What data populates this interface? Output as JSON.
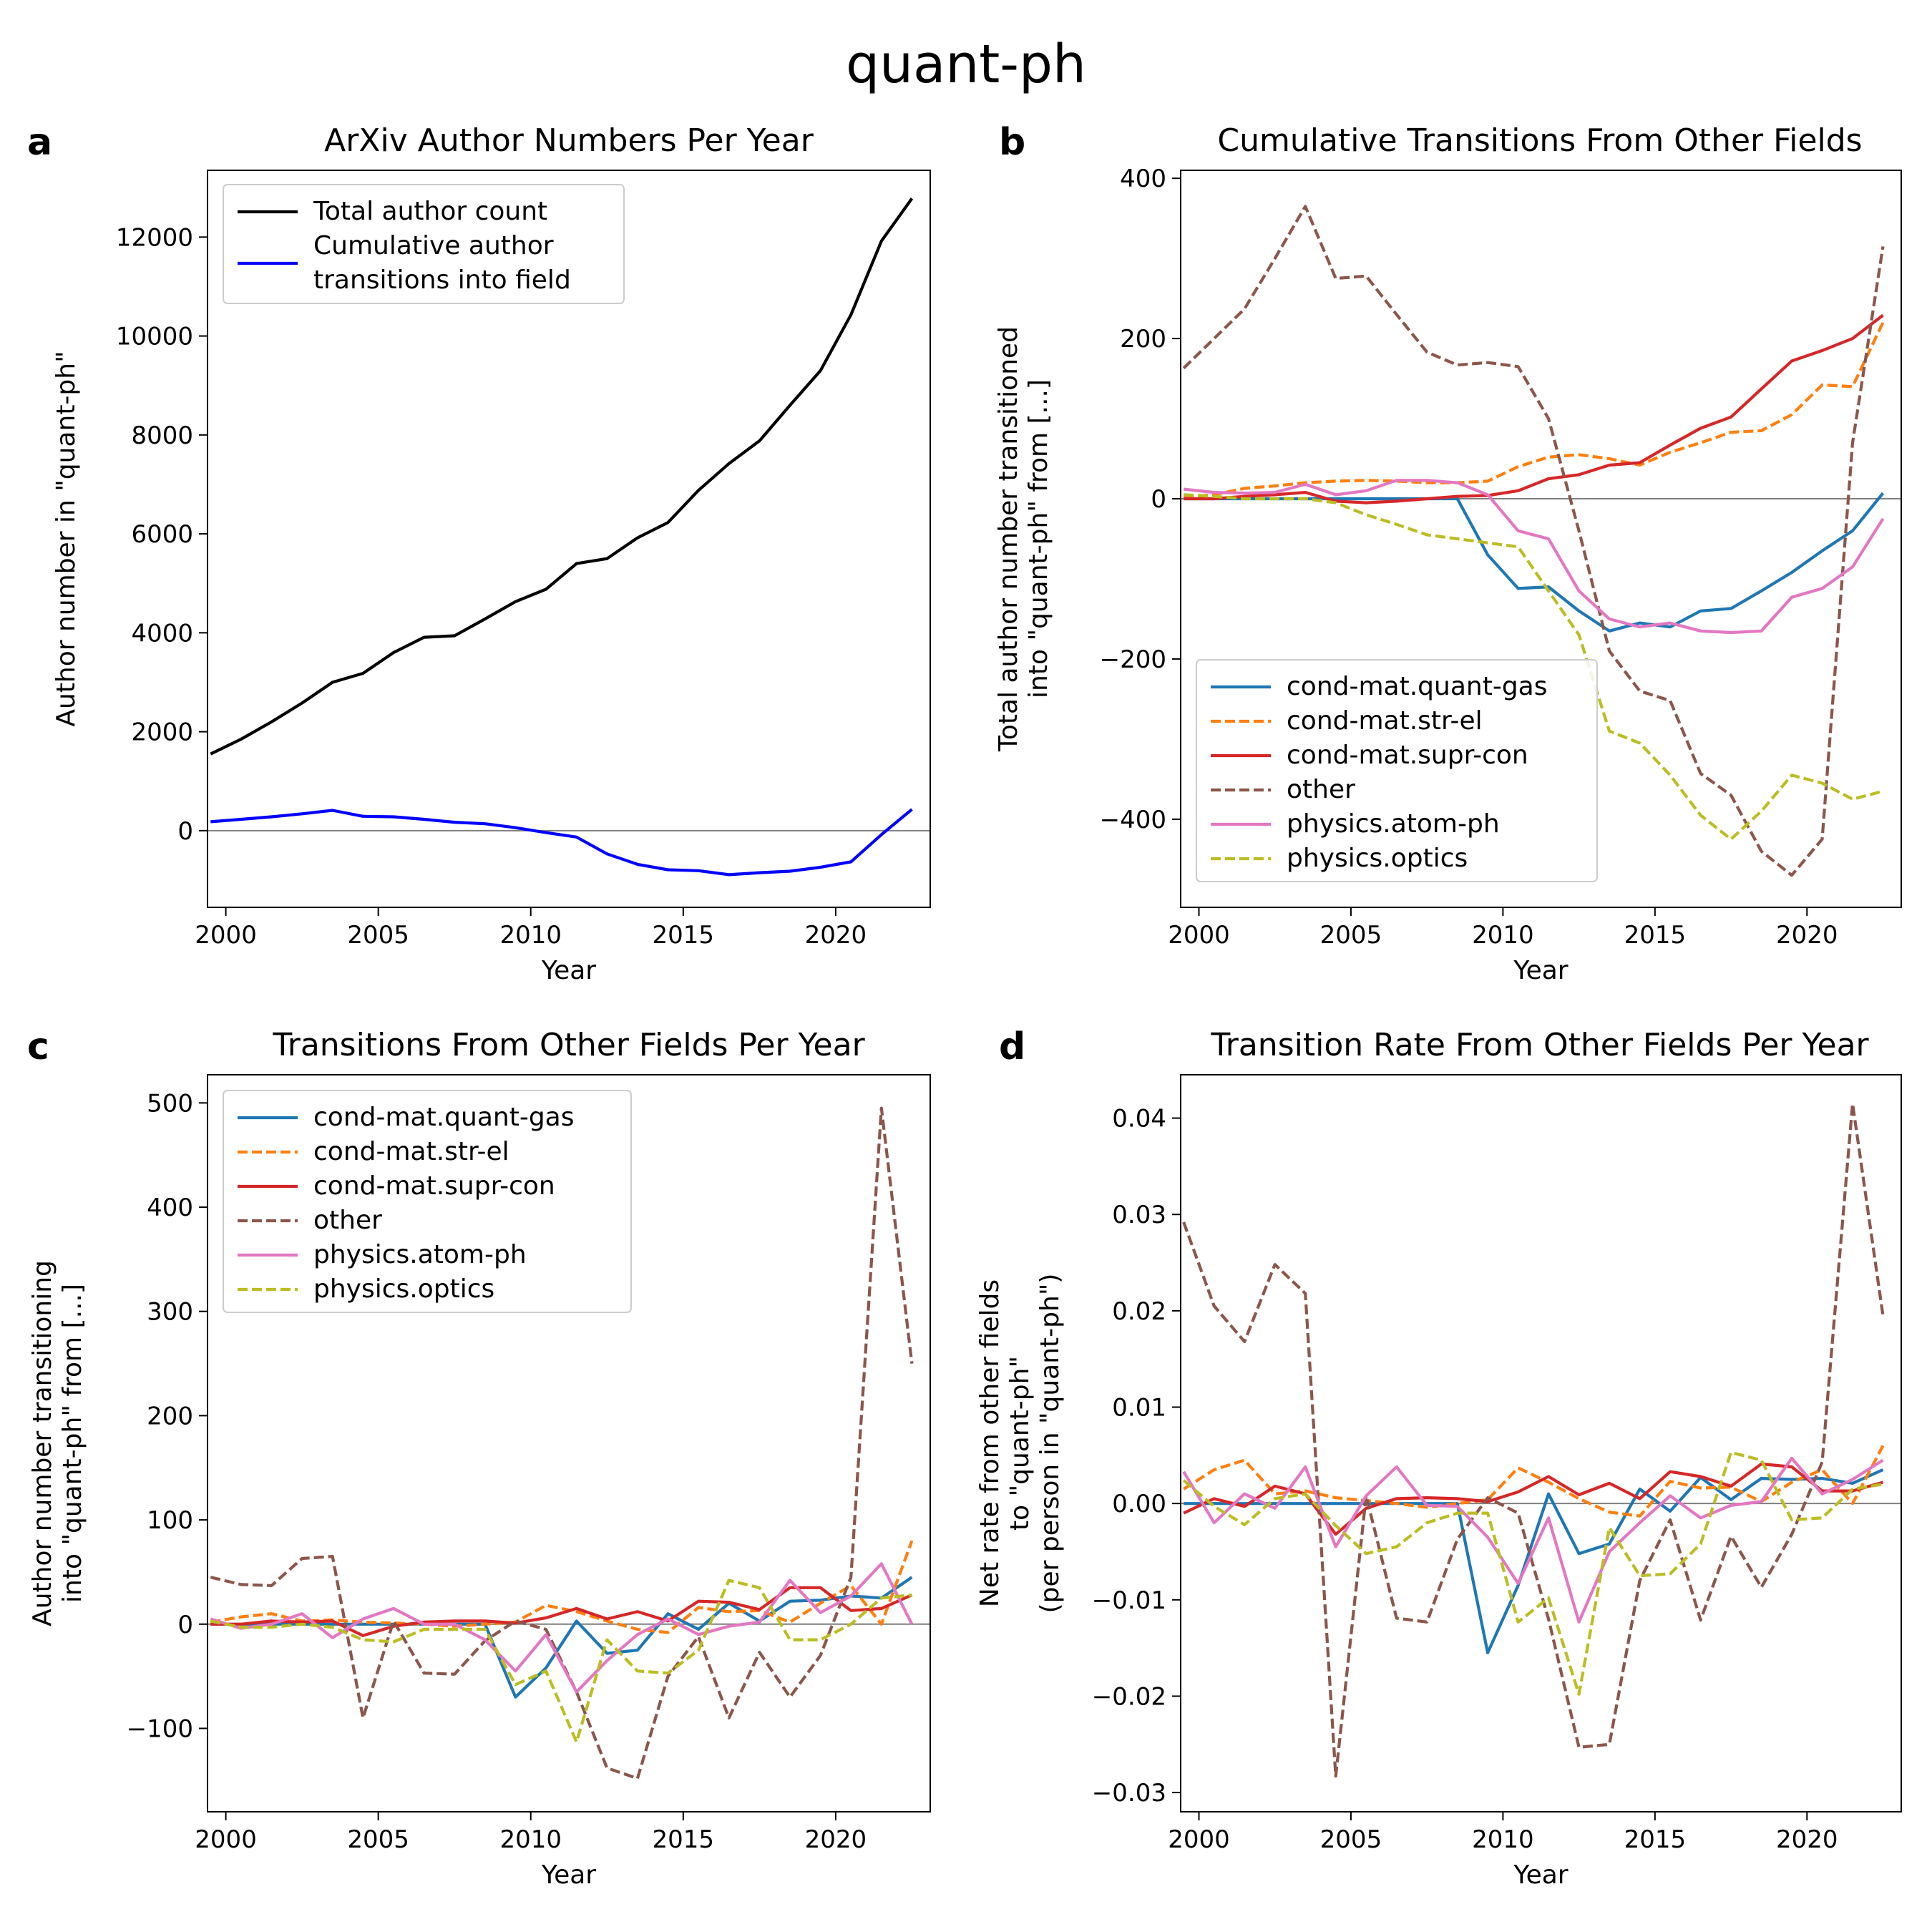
{
  "suptitle": "quant-ph",
  "colors": {
    "total": "#000000",
    "cumulative": "#0000ff",
    "cond-mat.quant-gas": "#1f77b4",
    "cond-mat.str-el": "#ff7f0e",
    "cond-mat.supr-con": "#d62728",
    "other": "#8c564b",
    "physics.atom-ph": "#e377c2",
    "physics.optics": "#bcbd22",
    "zero_line": "#808080"
  },
  "chart_data": [
    {
      "id": "a",
      "type": "line",
      "panel_letter": "a",
      "title": "ArXiv Author Numbers Per Year",
      "xlabel": "Year",
      "ylabel": "Author number in \"quant-ph\"",
      "xlim": [
        1999.4,
        2023.1
      ],
      "ylim": [
        -1550,
        13350
      ],
      "xticks": [
        2000,
        2005,
        2010,
        2015,
        2020
      ],
      "yticks": [
        0,
        2000,
        4000,
        6000,
        8000,
        10000,
        12000
      ],
      "legend_position": "upper left",
      "x": [
        1999.5,
        2000.5,
        2001.5,
        2002.5,
        2003.5,
        2004.5,
        2005.5,
        2006.5,
        2007.5,
        2008.5,
        2009.5,
        2010.5,
        2011.5,
        2012.5,
        2013.5,
        2014.5,
        2015.5,
        2016.5,
        2017.5,
        2018.5,
        2019.5,
        2020.5,
        2021.5,
        2022.5
      ],
      "series": [
        {
          "name": "Total author count",
          "color_key": "total",
          "dash": "solid",
          "values": [
            1550,
            1850,
            2200,
            2580,
            3000,
            3180,
            3600,
            3910,
            3940,
            4280,
            4630,
            4880,
            5400,
            5500,
            5920,
            6230,
            6880,
            7420,
            7880,
            8600,
            9300,
            10430,
            11920,
            12780
          ]
        },
        {
          "name": "Cumulative author\ntransitions into field",
          "color_key": "cumulative",
          "dash": "solid",
          "values": [
            180,
            230,
            280,
            340,
            410,
            290,
            280,
            230,
            170,
            140,
            60,
            -40,
            -130,
            -470,
            -680,
            -790,
            -810,
            -890,
            -850,
            -820,
            -740,
            -630,
            -80,
            430
          ]
        }
      ]
    },
    {
      "id": "b",
      "type": "line",
      "panel_letter": "b",
      "title": "Cumulative Transitions From Other Fields",
      "xlabel": "Year",
      "ylabel": "Total author number transitioned\ninto \"quant-ph\" from [...]",
      "xlim": [
        1999.4,
        2023.1
      ],
      "ylim": [
        -510,
        410
      ],
      "xticks": [
        2000,
        2005,
        2010,
        2015,
        2020
      ],
      "yticks": [
        -400,
        -200,
        0,
        200,
        400
      ],
      "legend_position": "lower left",
      "x": [
        1999.5,
        2000.5,
        2001.5,
        2002.5,
        2003.5,
        2004.5,
        2005.5,
        2006.5,
        2007.5,
        2008.5,
        2009.5,
        2010.5,
        2011.5,
        2012.5,
        2013.5,
        2014.5,
        2015.5,
        2016.5,
        2017.5,
        2018.5,
        2019.5,
        2020.5,
        2021.5,
        2022.5
      ],
      "series": [
        {
          "name": "cond-mat.quant-gas",
          "color_key": "cond-mat.quant-gas",
          "dash": "solid",
          "values": [
            0,
            0,
            0,
            0,
            0,
            0,
            0,
            0,
            0,
            0,
            -70,
            -112,
            -110,
            -140,
            -165,
            -155,
            -160,
            -140,
            -137,
            -115,
            -92,
            -65,
            -40,
            7
          ]
        },
        {
          "name": "cond-mat.str-el",
          "color_key": "cond-mat.str-el",
          "dash": "dashed",
          "values": [
            2,
            5,
            13,
            16,
            20,
            22,
            23,
            22,
            20,
            20,
            22,
            40,
            52,
            55,
            50,
            42,
            58,
            70,
            83,
            85,
            105,
            142,
            140,
            220
          ]
        },
        {
          "name": "cond-mat.supr-con",
          "color_key": "cond-mat.supr-con",
          "dash": "solid",
          "values": [
            0,
            0,
            3,
            5,
            8,
            -3,
            -5,
            -3,
            0,
            3,
            4,
            10,
            25,
            30,
            42,
            45,
            67,
            88,
            102,
            137,
            172,
            185,
            200,
            229
          ]
        },
        {
          "name": "other",
          "color_key": "other",
          "dash": "dashed",
          "values": [
            163,
            200,
            237,
            300,
            365,
            275,
            278,
            230,
            183,
            167,
            170,
            165,
            100,
            -40,
            -190,
            -240,
            -252,
            -343,
            -370,
            -440,
            -470,
            -425,
            70,
            315
          ]
        },
        {
          "name": "physics.atom-ph",
          "color_key": "physics.atom-ph",
          "dash": "solid",
          "values": [
            12,
            8,
            7,
            8,
            18,
            5,
            10,
            23,
            23,
            20,
            5,
            -40,
            -50,
            -115,
            -150,
            -160,
            -155,
            -165,
            -167,
            -165,
            -123,
            -112,
            -85,
            -25
          ]
        },
        {
          "name": "physics.optics",
          "color_key": "physics.optics",
          "dash": "dashed",
          "values": [
            5,
            3,
            0,
            0,
            0,
            -5,
            -20,
            -32,
            -45,
            -50,
            -55,
            -60,
            -115,
            -170,
            -290,
            -305,
            -345,
            -395,
            -425,
            -390,
            -345,
            -355,
            -375,
            -365
          ]
        }
      ]
    },
    {
      "id": "c",
      "type": "line",
      "panel_letter": "c",
      "title": "Transitions From Other Fields Per Year",
      "xlabel": "Year",
      "ylabel": "Author number transitioning\ninto \"quant-ph\" from [...]",
      "xlim": [
        1999.4,
        2023.1
      ],
      "ylim": [
        -180,
        527
      ],
      "xticks": [
        2000,
        2005,
        2010,
        2015,
        2020
      ],
      "yticks": [
        -100,
        0,
        100,
        200,
        300,
        400,
        500
      ],
      "legend_position": "upper left",
      "x": [
        1999.5,
        2000.5,
        2001.5,
        2002.5,
        2003.5,
        2004.5,
        2005.5,
        2006.5,
        2007.5,
        2008.5,
        2009.5,
        2010.5,
        2011.5,
        2012.5,
        2013.5,
        2014.5,
        2015.5,
        2016.5,
        2017.5,
        2018.5,
        2019.5,
        2020.5,
        2021.5,
        2022.5
      ],
      "series": [
        {
          "name": "cond-mat.quant-gas",
          "color_key": "cond-mat.quant-gas",
          "dash": "solid",
          "values": [
            0,
            0,
            0,
            0,
            0,
            0,
            0,
            0,
            0,
            0,
            -70,
            -42,
            3,
            -28,
            -25,
            10,
            -5,
            20,
            3,
            22,
            23,
            27,
            25,
            45
          ]
        },
        {
          "name": "cond-mat.str-el",
          "color_key": "cond-mat.str-el",
          "dash": "dashed",
          "values": [
            2,
            7,
            10,
            3,
            4,
            2,
            1,
            0,
            -2,
            0,
            2,
            18,
            12,
            3,
            -5,
            -8,
            16,
            12,
            13,
            2,
            20,
            37,
            0,
            80
          ]
        },
        {
          "name": "cond-mat.supr-con",
          "color_key": "cond-mat.supr-con",
          "dash": "solid",
          "values": [
            0,
            0,
            3,
            2,
            3,
            -11,
            -2,
            2,
            3,
            3,
            1,
            6,
            15,
            5,
            12,
            3,
            22,
            21,
            14,
            35,
            35,
            13,
            15,
            28
          ]
        },
        {
          "name": "other",
          "color_key": "other",
          "dash": "dashed",
          "values": [
            45,
            38,
            37,
            63,
            65,
            -90,
            3,
            -47,
            -48,
            -16,
            3,
            -5,
            -65,
            -138,
            -148,
            -50,
            -12,
            -90,
            -27,
            -70,
            -30,
            45,
            495,
            250
          ]
        },
        {
          "name": "physics.atom-ph",
          "color_key": "physics.atom-ph",
          "dash": "solid",
          "values": [
            5,
            -4,
            0,
            10,
            -13,
            5,
            15,
            0,
            0,
            -15,
            -45,
            -10,
            -65,
            -35,
            -10,
            5,
            -10,
            -2,
            2,
            42,
            11,
            27,
            58,
            0
          ]
        },
        {
          "name": "physics.optics",
          "color_key": "physics.optics",
          "dash": "dashed",
          "values": [
            3,
            -3,
            -3,
            0,
            -3,
            -15,
            -17,
            -5,
            -5,
            -5,
            -58,
            -45,
            -113,
            -15,
            -45,
            -47,
            -25,
            42,
            35,
            -15,
            -15,
            0,
            25,
            28
          ]
        }
      ]
    },
    {
      "id": "d",
      "type": "line",
      "panel_letter": "d",
      "title": "Transition Rate From Other Fields Per Year",
      "xlabel": "Year",
      "ylabel": "Net rate from other fields\nto \"quant-ph\"\n(per person in \"quant-ph\")",
      "xlim": [
        1999.4,
        2023.1
      ],
      "ylim": [
        -0.032,
        0.0445
      ],
      "xticks": [
        2000,
        2005,
        2010,
        2015,
        2020
      ],
      "yticks": [
        -0.03,
        -0.02,
        -0.01,
        0.0,
        0.01,
        0.02,
        0.03,
        0.04
      ],
      "ytick_labels": [
        "−0.03",
        "−0.02",
        "−0.01",
        "0.00",
        "0.01",
        "0.02",
        "0.03",
        "0.04"
      ],
      "legend_position": "none",
      "x": [
        1999.5,
        2000.5,
        2001.5,
        2002.5,
        2003.5,
        2004.5,
        2005.5,
        2006.5,
        2007.5,
        2008.5,
        2009.5,
        2010.5,
        2011.5,
        2012.5,
        2013.5,
        2014.5,
        2015.5,
        2016.5,
        2017.5,
        2018.5,
        2019.5,
        2020.5,
        2021.5,
        2022.5
      ],
      "series": [
        {
          "name": "cond-mat.quant-gas",
          "color_key": "cond-mat.quant-gas",
          "dash": "solid",
          "values": [
            0,
            0,
            0,
            0,
            0,
            0,
            0,
            0,
            0,
            0,
            -0.0155,
            -0.0085,
            0.001,
            -0.0052,
            -0.0042,
            0.0015,
            -0.0008,
            0.0027,
            0.0004,
            0.0026,
            0.0025,
            0.0026,
            0.0021,
            0.0035
          ]
        },
        {
          "name": "cond-mat.str-el",
          "color_key": "cond-mat.str-el",
          "dash": "dashed",
          "values": [
            0.0015,
            0.0035,
            0.0045,
            0.001,
            0.0013,
            0.0006,
            0.0003,
            0,
            -0.0004,
            0,
            0.0004,
            0.0037,
            0.0022,
            0.0005,
            -0.0009,
            -0.0013,
            0.0023,
            0.0016,
            0.0017,
            0.0002,
            0.0022,
            0.0035,
            0,
            0.006
          ]
        },
        {
          "name": "cond-mat.supr-con",
          "color_key": "cond-mat.supr-con",
          "dash": "solid",
          "values": [
            -0.001,
            0.0005,
            -0.0003,
            0.0018,
            0.001,
            -0.0032,
            -0.0005,
            0.0005,
            0.0006,
            0.0005,
            0.0002,
            0.0012,
            0.0028,
            0.0009,
            0.0021,
            0.0005,
            0.0033,
            0.0028,
            0.0018,
            0.0041,
            0.0038,
            0.0013,
            0.0013,
            0.0022
          ]
        },
        {
          "name": "other",
          "color_key": "other",
          "dash": "dashed",
          "values": [
            0.0292,
            0.0205,
            0.0168,
            0.0248,
            0.0218,
            -0.0283,
            0.0008,
            -0.0119,
            -0.0123,
            -0.0037,
            0.0006,
            -0.001,
            -0.012,
            -0.0253,
            -0.025,
            -0.008,
            -0.0017,
            -0.0121,
            -0.0034,
            -0.0087,
            -0.0032,
            0.0043,
            0.0415,
            0.0195
          ]
        },
        {
          "name": "physics.atom-ph",
          "color_key": "physics.atom-ph",
          "dash": "solid",
          "values": [
            0.0033,
            -0.002,
            0.001,
            -0.0005,
            0.0038,
            -0.0045,
            0.0008,
            0.0038,
            -0.0002,
            -0.0003,
            -0.0035,
            -0.0083,
            -0.0015,
            -0.0123,
            -0.005,
            -0.002,
            0.0008,
            -0.0015,
            -0.0002,
            0.0002,
            0.0047,
            0.001,
            0.0025,
            0.0045
          ]
        },
        {
          "name": "physics.optics",
          "color_key": "physics.optics",
          "dash": "dashed",
          "values": [
            0.0024,
            -0.0003,
            -0.0022,
            0.0005,
            0.001,
            -0.0023,
            -0.0052,
            -0.0045,
            -0.002,
            -0.001,
            -0.001,
            -0.0123,
            -0.0098,
            -0.0198,
            -0.0025,
            -0.0075,
            -0.0073,
            -0.0042,
            0.0053,
            0.0045,
            -0.0017,
            -0.0015,
            0.0015,
            0.002
          ]
        }
      ]
    }
  ]
}
